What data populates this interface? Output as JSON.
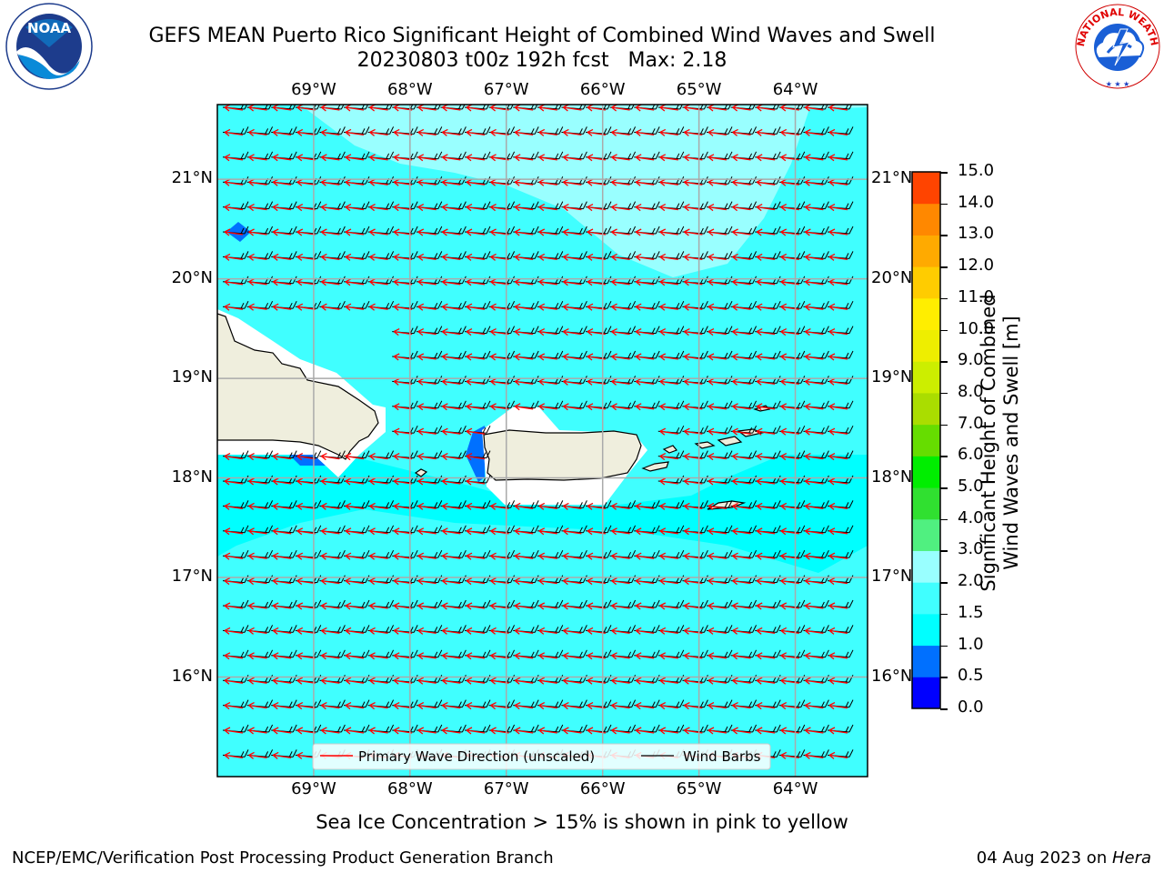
{
  "title": {
    "line1": "GEFS MEAN Puerto Rico Significant Height of Combined Wind Waves and Swell",
    "line2": "20230803 t00z 192h fcst   Max: 2.18"
  },
  "logos": {
    "left": {
      "icon": "noaa-logo-icon",
      "text": "NOAA",
      "ring_text": "NATIONAL OCEANIC AND ATMOSPHERIC ADMINISTRATION · U.S. DEPARTMENT OF COMMERCE"
    },
    "right": {
      "icon": "nws-logo-icon",
      "ring_text": "NATIONAL WEATHER SERVICE"
    }
  },
  "map": {
    "lon_labels": [
      "69°W",
      "68°W",
      "67°W",
      "66°W",
      "65°W",
      "64°W"
    ],
    "lat_labels": [
      "21°N",
      "20°N",
      "19°N",
      "18°N",
      "17°N",
      "16°N"
    ],
    "lon_range": [
      -70.0,
      -63.25
    ],
    "lat_range": [
      15.0,
      21.75
    ],
    "max_value": 2.18,
    "wave_direction_color": "#ff0000",
    "wind_barb_color": "#000000",
    "land_color": "#efeedd",
    "grid_color": "#aaaaaa"
  },
  "legend": {
    "wave": "Primary Wave Direction (unscaled)",
    "wind": "Wind Barbs"
  },
  "colorbar": {
    "label_line1": "Significant Height of Combined",
    "label_line2": "Wind Waves and Swell [m]",
    "ticks": [
      "0.0",
      "0.5",
      "1.0",
      "1.5",
      "2.0",
      "3.0",
      "4.0",
      "5.0",
      "6.0",
      "7.0",
      "8.0",
      "9.0",
      "10.0",
      "11.0",
      "12.0",
      "13.0",
      "14.0",
      "15.0"
    ],
    "colors": [
      "#0000ff",
      "#0070ff",
      "#00ffff",
      "#40ffff",
      "#99ffff",
      "#50f080",
      "#30e030",
      "#00ee00",
      "#66dd00",
      "#aadd00",
      "#ccee00",
      "#eeee00",
      "#ffee00",
      "#ffcc00",
      "#ffaa00",
      "#ff8800",
      "#ff4400",
      "#ff0000"
    ]
  },
  "subtitle": "Sea Ice Concentration > 15% is shown in pink to yellow",
  "footer": {
    "left": "NCEP/EMC/Verification Post Processing Product Generation Branch",
    "date": "04 Aug 2023 on ",
    "machine": "Hera"
  }
}
